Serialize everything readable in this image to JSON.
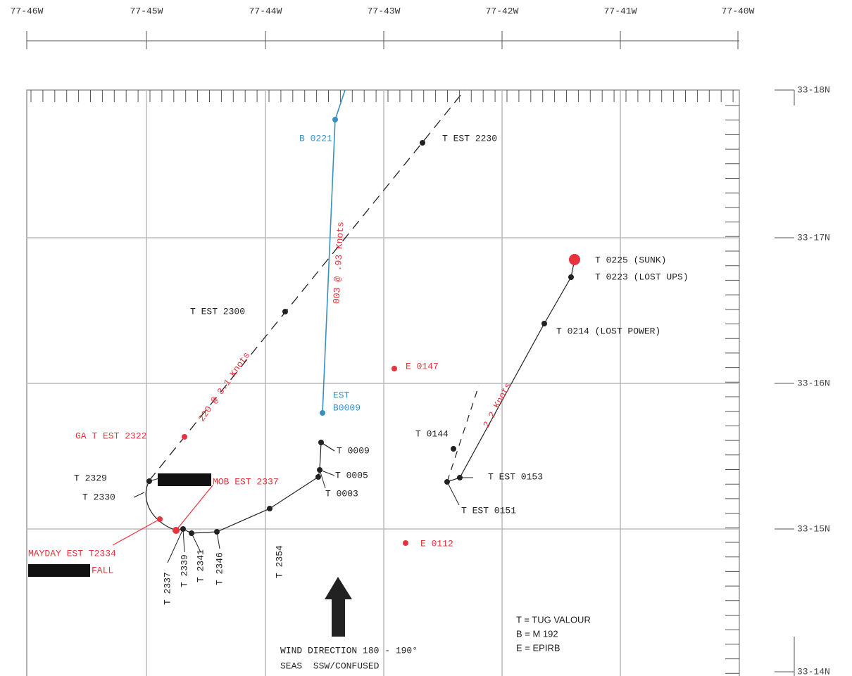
{
  "top_axis": {
    "labels": [
      "77-46W",
      "77-45W",
      "77-44W",
      "77-43W",
      "77-42W",
      "77-41W",
      "77-40W"
    ]
  },
  "right_axis": {
    "labels": [
      "33-18N",
      "33-17N",
      "33-16N",
      "33-15N",
      "33-14N"
    ]
  },
  "annotations": [
    "B 0221",
    "T EST 2230",
    "003 @ .93 Knots",
    "T 0225 (SUNK)",
    "T 0223 (LOST UPS)",
    "T EST 2300",
    "T 0214 (LOST POWER)",
    "220 @ 3.1 Knots",
    "E 0147",
    "EST",
    "B0009",
    "2.2 Knots",
    "GA T EST 2322",
    "T 0144",
    "T 0009",
    "T 2329",
    "MOB EST 2337",
    "T 0005",
    "T EST 0153",
    "T 0003",
    "T 2330",
    "T EST 0151",
    "MAYDAY EST T2334",
    "FALL",
    "E 0112",
    "T 2337",
    "T 2339",
    "T 2341",
    "T 2346",
    "T 2354"
  ],
  "legend": [
    "T = TUG VALOUR",
    "B = M 192",
    "E = EPIRB"
  ],
  "wind_note": [
    "WIND DIRECTION 180 - 190°",
    "SEAS  SSW/CONFUSED"
  ]
}
